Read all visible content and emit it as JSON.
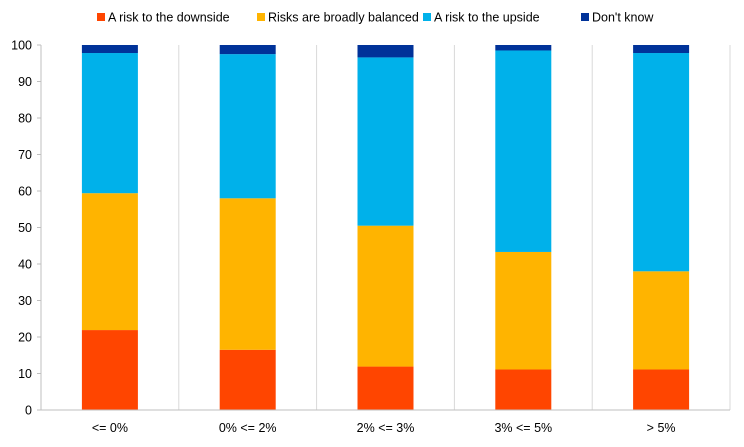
{
  "chart_data": {
    "type": "bar",
    "stacked": true,
    "title": "",
    "xlabel": "",
    "ylabel": "",
    "categories": [
      "<= 0%",
      "0% <= 2%",
      "2% <= 3%",
      "3% <= 5%",
      "> 5%"
    ],
    "series": [
      {
        "name": "A risk to the downside",
        "color": "#FF4500",
        "values": [
          21.9,
          16.5,
          11.9,
          11.1,
          11.1
        ]
      },
      {
        "name": "Risks are broadly balanced",
        "color": "#FFB400",
        "values": [
          37.5,
          41.5,
          38.6,
          32.2,
          26.9
        ]
      },
      {
        "name": "A risk to the upside",
        "color": "#00B1EA",
        "values": [
          38.4,
          39.5,
          46.1,
          55.2,
          59.8
        ]
      },
      {
        "name": "Don't know",
        "color": "#003299",
        "values": [
          2.2,
          2.5,
          3.4,
          1.5,
          2.2
        ]
      }
    ],
    "ylim": [
      0,
      100
    ],
    "yticks": [
      0,
      10,
      20,
      30,
      40,
      50,
      60,
      70,
      80,
      90,
      100
    ],
    "grid": false,
    "legend_position": "top"
  }
}
